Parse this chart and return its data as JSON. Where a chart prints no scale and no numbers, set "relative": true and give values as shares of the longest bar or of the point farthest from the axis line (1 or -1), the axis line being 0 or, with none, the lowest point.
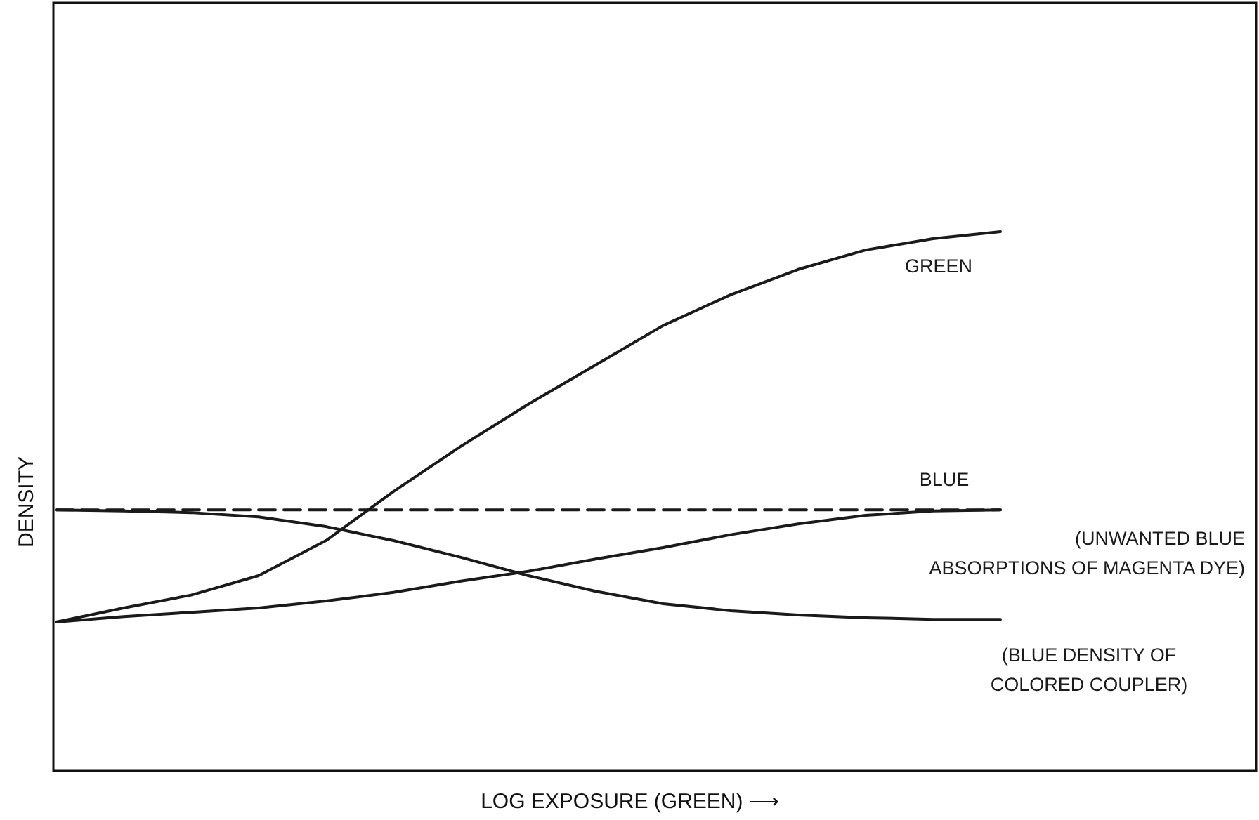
{
  "chart_data": {
    "type": "line",
    "relative": true,
    "xlabel": "LOG EXPOSURE (GREEN) ⟶",
    "ylabel": "DENSITY",
    "grid": false,
    "marker": "none",
    "categories": [
      null,
      null,
      null,
      null,
      null,
      null,
      null,
      null,
      null,
      null,
      null,
      null,
      null,
      null,
      null,
      null,
      null,
      null
    ],
    "series": [
      {
        "name": "GREEN",
        "color": "#1a1a1a",
        "line_style": "solid",
        "values": [
          0.276,
          0.302,
          0.326,
          0.362,
          0.427,
          0.518,
          0.602,
          0.68,
          0.753,
          0.826,
          0.883,
          0.93,
          0.966,
          0.987,
          1.0,
          null,
          null,
          null
        ]
      },
      {
        "name": "BLUE",
        "color": "#1a1a1a",
        "line_style": "dashed",
        "values": [
          0.484,
          0.484,
          0.484,
          0.484,
          0.484,
          0.484,
          0.484,
          0.484,
          0.484,
          0.484,
          0.484,
          0.484,
          0.484,
          0.484,
          0.484,
          null,
          null,
          null
        ]
      },
      {
        "name": "(UNWANTED BLUE ABSORPTIONS OF MAGENTA DYE)",
        "color": "#1a1a1a",
        "line_style": "solid",
        "values": [
          0.276,
          0.286,
          0.294,
          0.302,
          0.315,
          0.331,
          0.352,
          0.37,
          0.393,
          0.414,
          0.438,
          0.458,
          0.474,
          0.482,
          0.484,
          null,
          null,
          null
        ]
      },
      {
        "name": "(BLUE DENSITY OF COLORED COUPLER)",
        "color": "#1a1a1a",
        "line_style": "solid",
        "values": [
          0.484,
          0.482,
          0.479,
          0.471,
          0.453,
          0.427,
          0.396,
          0.362,
          0.333,
          0.31,
          0.297,
          0.289,
          0.284,
          0.281,
          0.281,
          null,
          null,
          null
        ]
      }
    ]
  }
}
